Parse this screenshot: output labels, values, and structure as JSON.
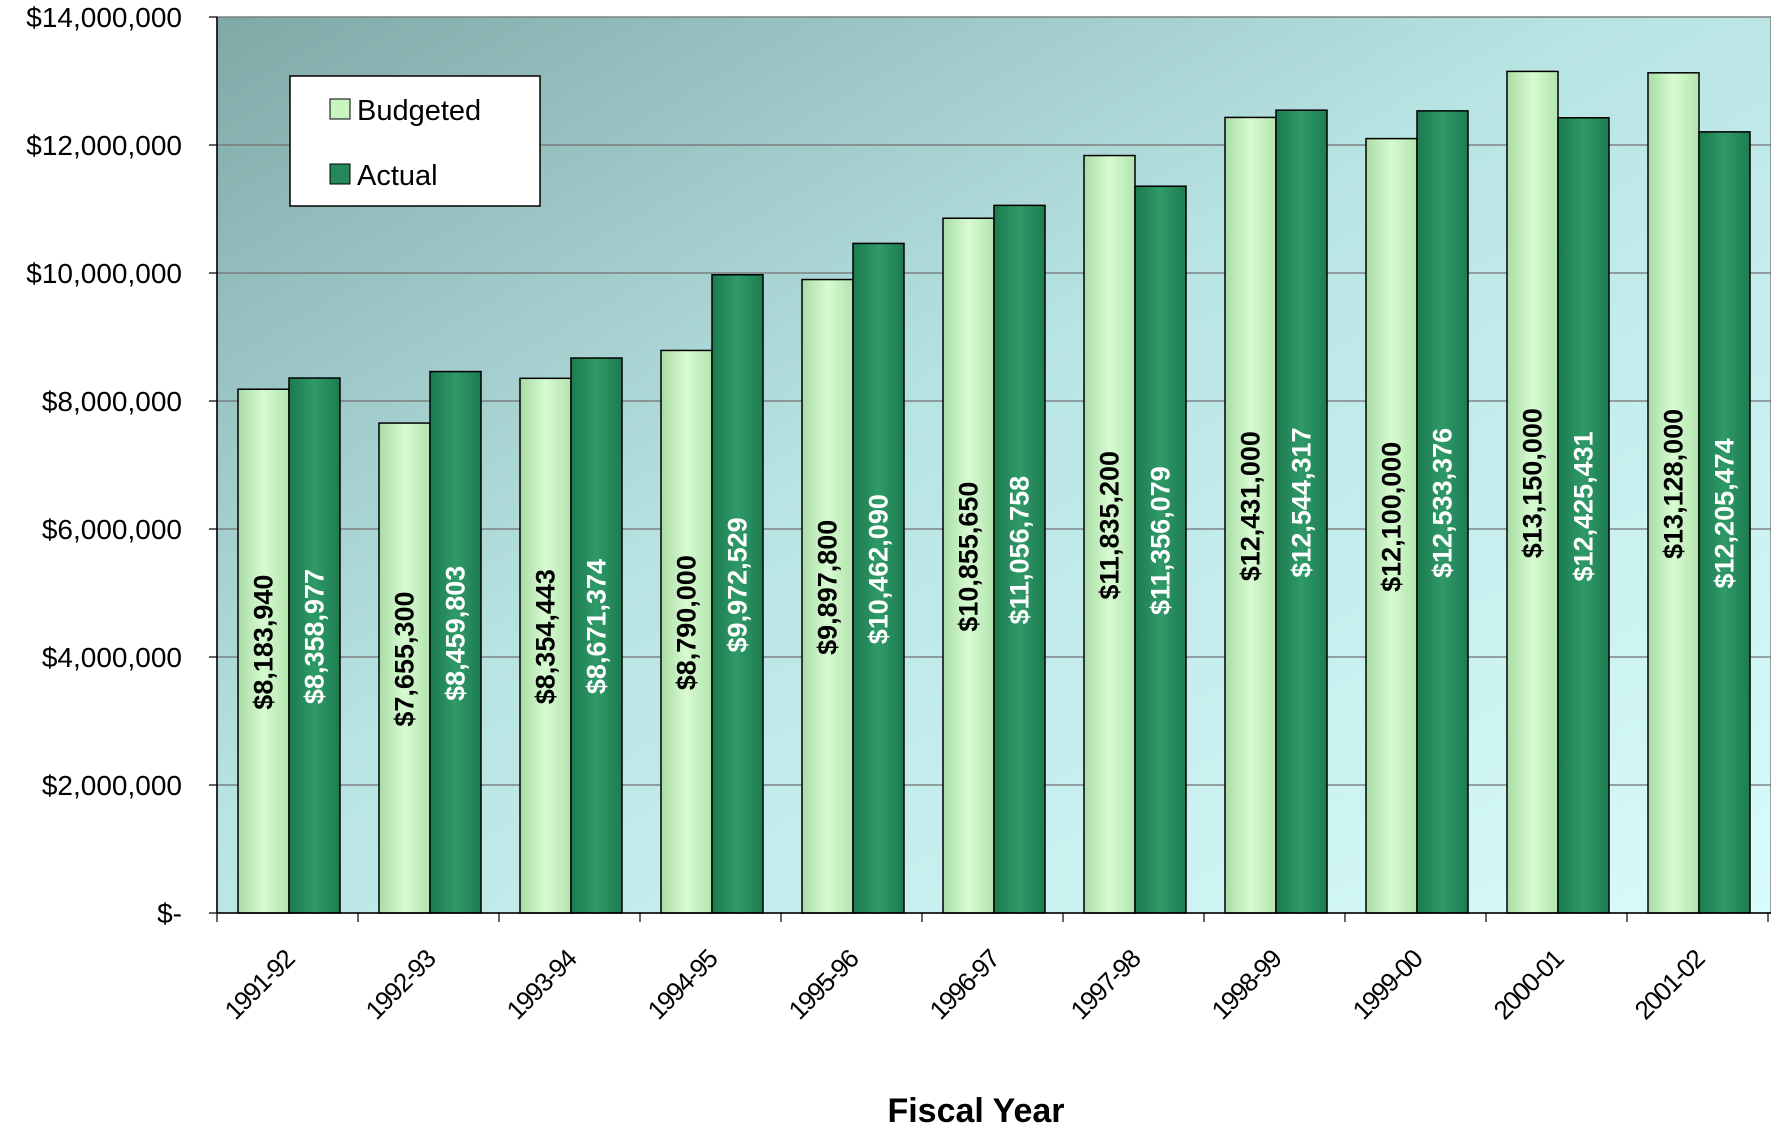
{
  "chart_data": {
    "type": "bar",
    "title": "",
    "xlabel": "Fiscal Year",
    "ylabel": "",
    "ylim": [
      0,
      14000000
    ],
    "y_ticks": [
      0,
      2000000,
      4000000,
      6000000,
      8000000,
      10000000,
      12000000,
      14000000
    ],
    "y_tick_labels": [
      "$-",
      "$2,000,000",
      "$4,000,000",
      "$6,000,000",
      "$8,000,000",
      "$10,000,000",
      "$12,000,000",
      "$14,000,000"
    ],
    "grid": true,
    "legend_position": "top-left",
    "categories": [
      "1991-92",
      "1992-93",
      "1993-94",
      "1994-95",
      "1995-96",
      "1996-97",
      "1997-98",
      "1998-99",
      "1999-00",
      "2000-01",
      "2001-02"
    ],
    "series": [
      {
        "name": "Budgeted",
        "color": "#c8f5c0",
        "label_color": "#000000",
        "values": [
          8183940,
          7655300,
          8354443,
          8790000,
          9897800,
          10855650,
          11835200,
          12431000,
          12100000,
          13150000,
          13128000
        ],
        "labels": [
          "$8,183,940",
          "$7,655,300",
          "$8,354,443",
          "$8,790,000",
          "$9,897,800",
          "$10,855,650",
          "$11,835,200",
          "$12,431,000",
          "$12,100,000",
          "$13,150,000",
          "$13,128,000"
        ]
      },
      {
        "name": "Actual",
        "color": "#23895a",
        "label_color": "#ffffff",
        "values": [
          8358977,
          8459803,
          8671374,
          9972529,
          10462090,
          11056758,
          11356079,
          12544317,
          12533376,
          12425431,
          12205474
        ],
        "labels": [
          "$8,358,977",
          "$8,459,803",
          "$8,671,374",
          "$9,972,529",
          "$10,462,090",
          "$11,056,758",
          "$11,356,079",
          "$12,544,317",
          "$12,533,376",
          "$12,425,431",
          "$12,205,474"
        ]
      }
    ]
  }
}
